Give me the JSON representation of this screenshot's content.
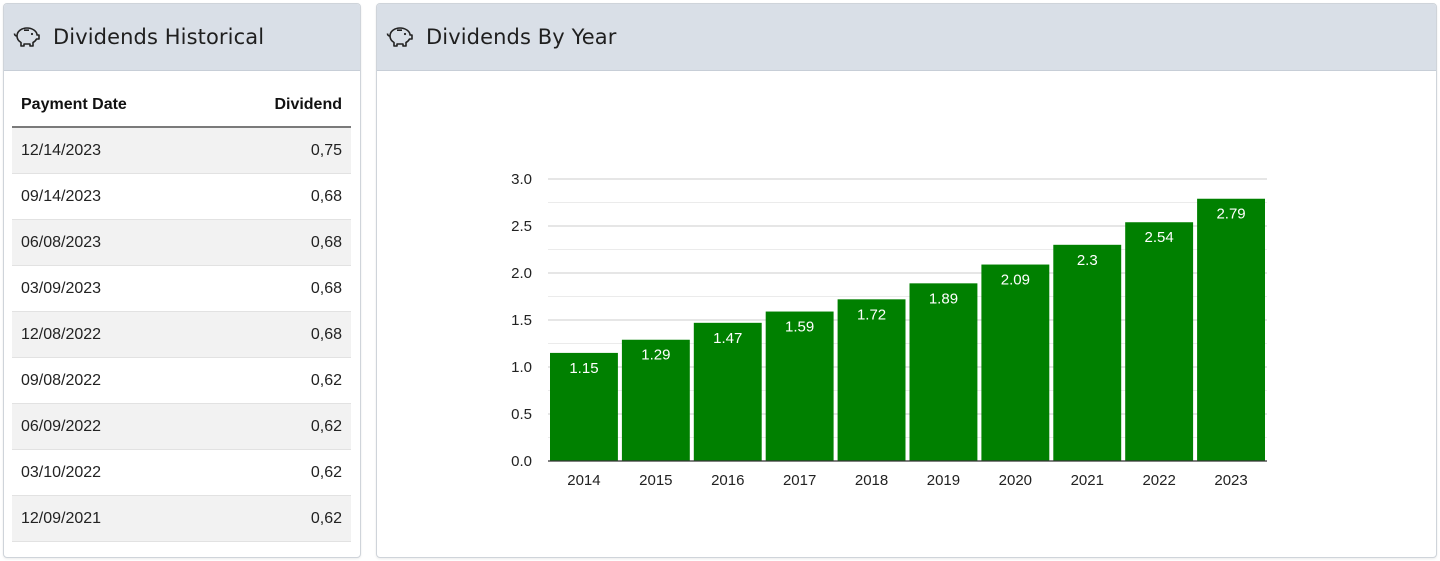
{
  "historical": {
    "title": "Dividends Historical",
    "icon": "piggy-bank-icon",
    "columns": {
      "date": "Payment Date",
      "dividend": "Dividend"
    },
    "rows": [
      {
        "date": "12/14/2023",
        "dividend": "0,75"
      },
      {
        "date": "09/14/2023",
        "dividend": "0,68"
      },
      {
        "date": "06/08/2023",
        "dividend": "0,68"
      },
      {
        "date": "03/09/2023",
        "dividend": "0,68"
      },
      {
        "date": "12/08/2022",
        "dividend": "0,68"
      },
      {
        "date": "09/08/2022",
        "dividend": "0,62"
      },
      {
        "date": "06/09/2022",
        "dividend": "0,62"
      },
      {
        "date": "03/10/2022",
        "dividend": "0,62"
      },
      {
        "date": "12/09/2021",
        "dividend": "0,62"
      }
    ]
  },
  "by_year": {
    "title": "Dividends By Year",
    "icon": "piggy-bank-icon"
  },
  "colors": {
    "bar": "#008000",
    "header_bg": "#d9dfe7"
  },
  "chart_data": {
    "type": "bar",
    "title": "",
    "xlabel": "",
    "ylabel": "",
    "categories": [
      "2014",
      "2015",
      "2016",
      "2017",
      "2018",
      "2019",
      "2020",
      "2021",
      "2022",
      "2023"
    ],
    "values": [
      1.15,
      1.29,
      1.47,
      1.59,
      1.72,
      1.89,
      2.09,
      2.3,
      2.54,
      2.79
    ],
    "value_labels": [
      "1.15",
      "1.29",
      "1.47",
      "1.59",
      "1.72",
      "1.89",
      "2.09",
      "2.3",
      "2.54",
      "2.79"
    ],
    "ylim": [
      0,
      3
    ],
    "yticks": [
      "0.0",
      "0.5",
      "1.0",
      "1.5",
      "2.0",
      "2.5",
      "3.0"
    ],
    "grid": true,
    "legend": "none"
  }
}
